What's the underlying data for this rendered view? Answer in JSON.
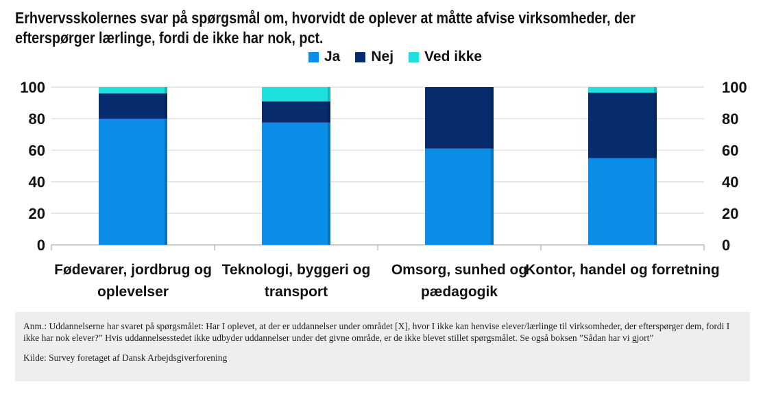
{
  "title": "Erhvervsskolernes svar på spørgsmål om, hvorvidt de oplever at måtte afvise virksomheder, der efterspørger lærlinge, fordi de ikke har nok, pct.",
  "note": "Anm.: Uddannelserne har svaret på spørgsmålet: Har I oplevet, at der er uddannelser under området [X], hvor I ikke kan henvise elever/lærlinge til virksomheder, der efterspørger dem, fordi I ikke har nok elever?” Hvis uddannelsesstedet ikke udbyder uddannelser under det givne område, er de ikke blevet stillet spørgsmålet. Se også boksen ”Sådan har vi gjort”",
  "source": "Kilde: Survey foretaget af Dansk Arbejdsgiverforening",
  "colors": {
    "ja": "#0a8ee8",
    "nej": "#062c6e",
    "ved_ikke": "#1ee0dc"
  },
  "chart_data": {
    "type": "bar",
    "stacked": true,
    "categories": [
      [
        "Fødevarer, jordbrug og",
        "oplevelser"
      ],
      [
        "Teknologi, byggeri og",
        "transport"
      ],
      [
        "Omsorg, sunhed og",
        "pædagogik"
      ],
      [
        "Kontor, handel og forretning"
      ]
    ],
    "series": [
      {
        "name": "Ja",
        "color": "#0a8ee8",
        "values": [
          80,
          77.5,
          61,
          55
        ]
      },
      {
        "name": "Nej",
        "color": "#062c6e",
        "values": [
          16,
          13.5,
          39,
          41.5
        ]
      },
      {
        "name": "Ved ikke",
        "color": "#1ee0dc",
        "values": [
          4,
          9,
          0,
          3.5
        ]
      }
    ],
    "ylim": [
      0,
      100
    ],
    "yticks": [
      0,
      20,
      40,
      60,
      80,
      100
    ],
    "secondary_y_axis": true,
    "grid": true,
    "legend_position": "top"
  }
}
